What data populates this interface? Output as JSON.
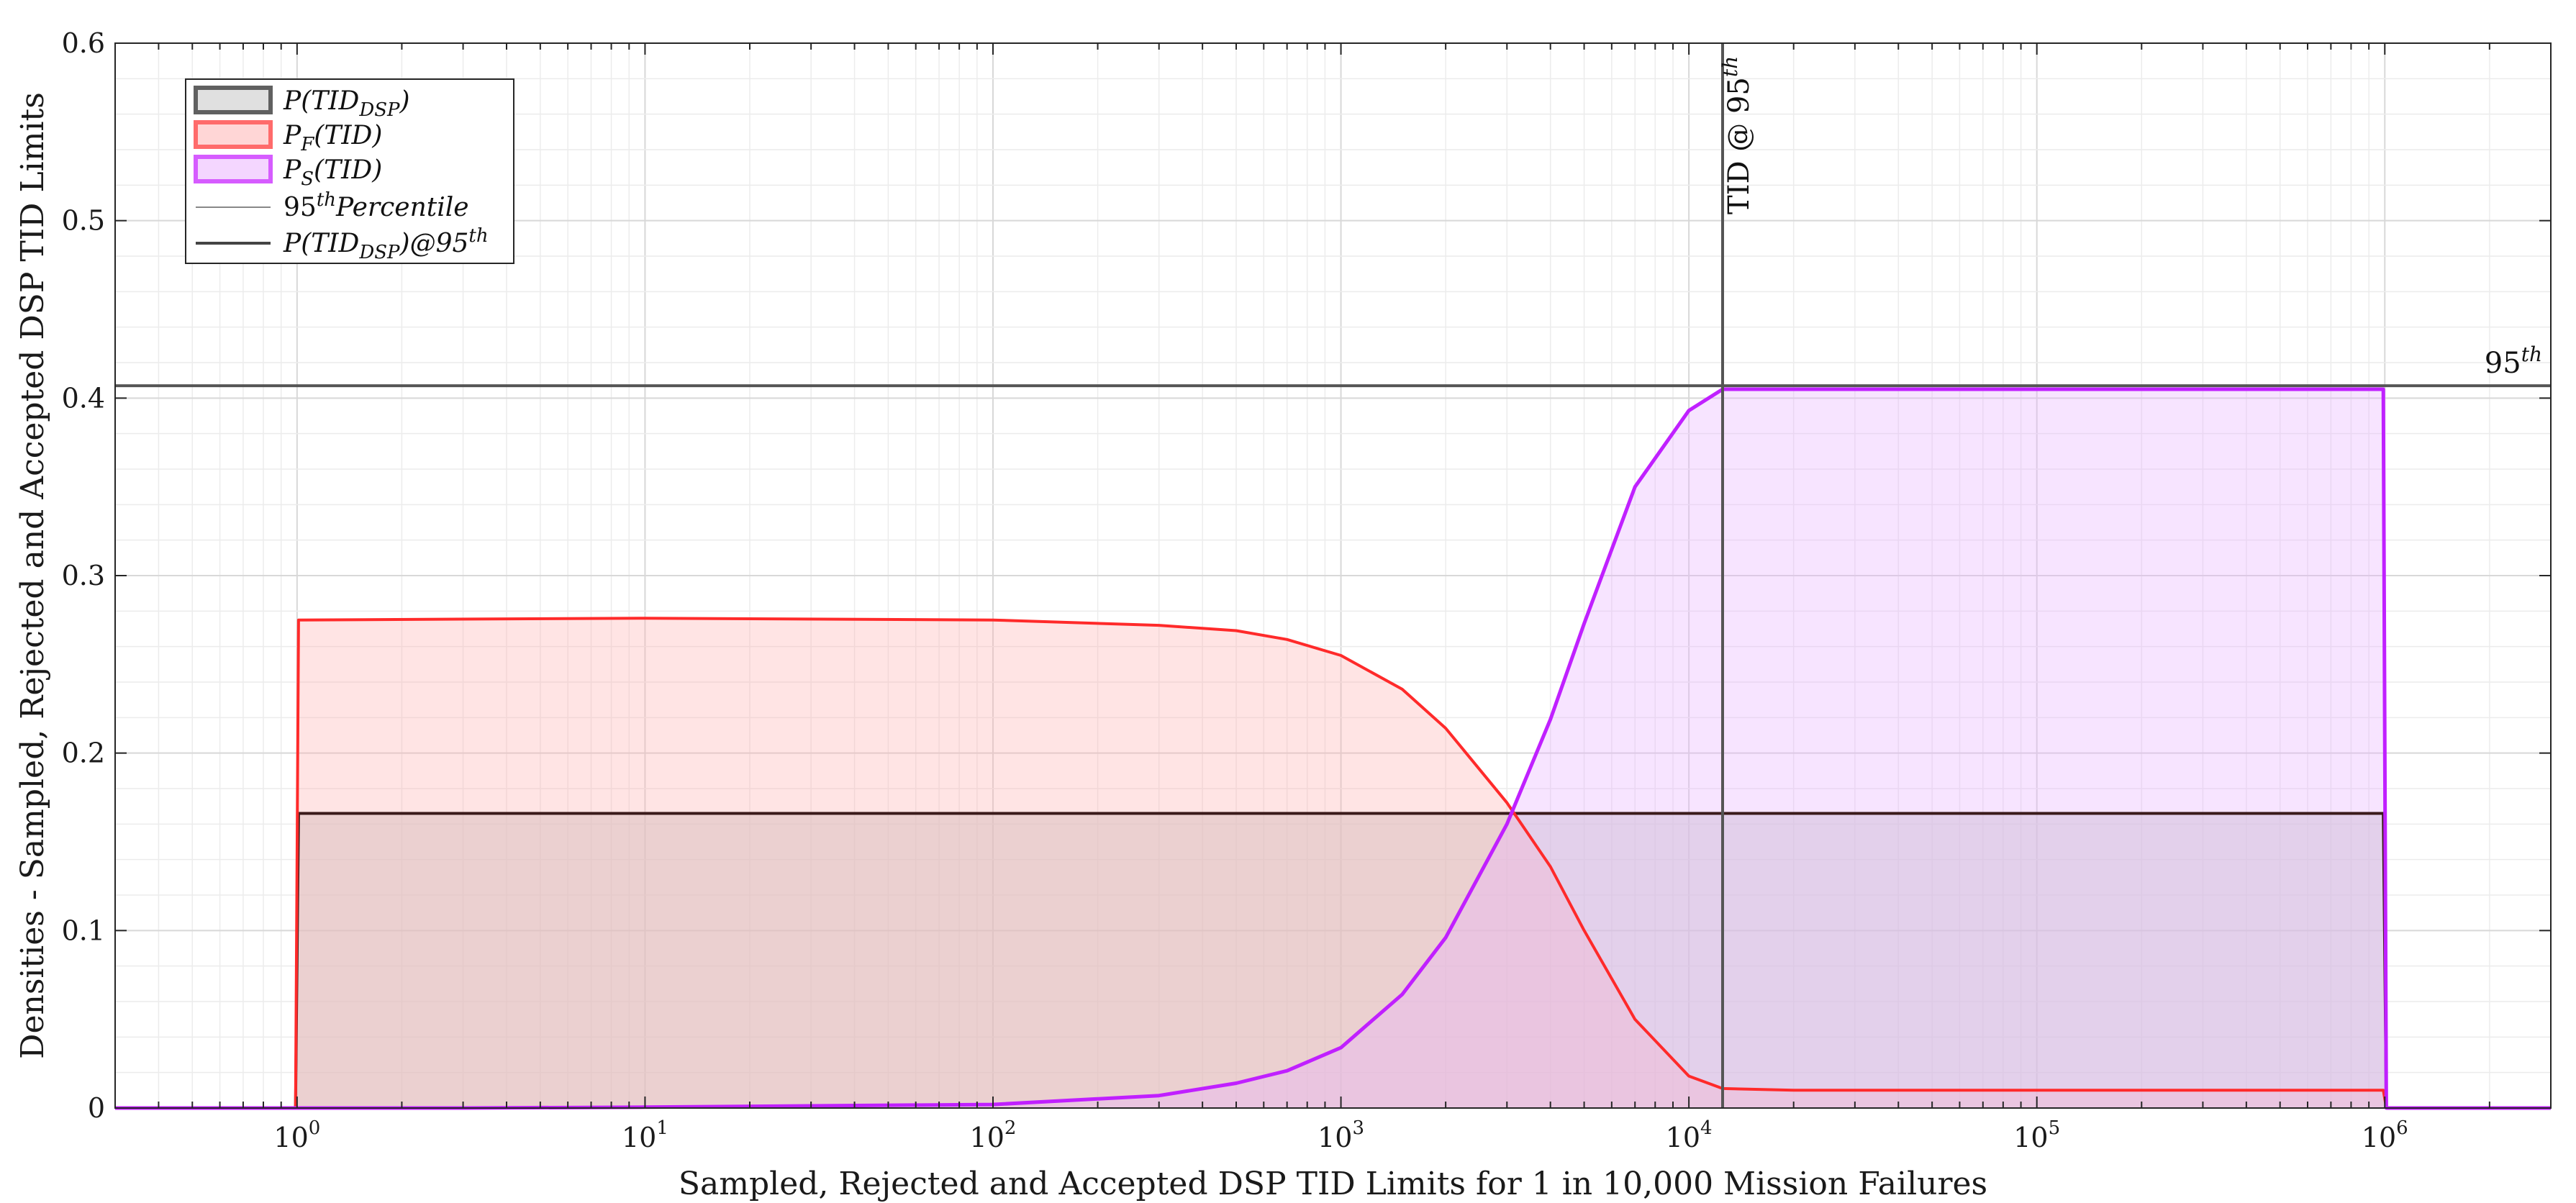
{
  "chart_data": {
    "type": "area",
    "xscale": "log",
    "xlim": [
      0.3,
      3000000
    ],
    "ylim": [
      0,
      0.6
    ],
    "grid": true,
    "legend_position": "top-left",
    "xlabel": "Sampled, Rejected and Accepted DSP TID Limits for 1 in 10,000 Mission Failures",
    "ylabel": "Densities - Sampled, Rejected and Accepted DSP TID Limits",
    "y_ticks": [
      "0",
      "0.1",
      "0.2",
      "0.3",
      "0.4",
      "0.5",
      "0.6"
    ],
    "x_ticks": [
      {
        "base": "10",
        "exp": "0",
        "value": 1
      },
      {
        "base": "10",
        "exp": "1",
        "value": 10
      },
      {
        "base": "10",
        "exp": "2",
        "value": 100
      },
      {
        "base": "10",
        "exp": "3",
        "value": 1000
      },
      {
        "base": "10",
        "exp": "4",
        "value": 10000
      },
      {
        "base": "10",
        "exp": "5",
        "value": 100000
      },
      {
        "base": "10",
        "exp": "6",
        "value": 1000000
      }
    ],
    "legend": {
      "p_dsp": {
        "main": "P(TID",
        "sub": "DSP",
        "tail": ")"
      },
      "p_f": {
        "main": "P",
        "sub": "F",
        "tail": "(TID)"
      },
      "p_s": {
        "main": "P",
        "sub": "S",
        "tail": "(TID)"
      },
      "percentile": {
        "main": "95",
        "sup": "th",
        "tail": "Percentile"
      },
      "p_dsp_at95": {
        "main": "P(TID",
        "sub": "DSP",
        "mid": ")@95",
        "sup": "th"
      }
    },
    "annotations": {
      "vline_label": {
        "main": "TID @ 95",
        "sup": "th"
      },
      "hline_label": {
        "main": "95",
        "sup": "th"
      }
    },
    "reference_lines": {
      "hline_y": 0.407,
      "vline_x": 12500
    },
    "colors": {
      "dsp_line": "#3a1a1a",
      "dsp_fill": "#c8c8c8",
      "f_line": "#ff2a2a",
      "f_fill": "#ffb3b3",
      "s_line": "#c020ff",
      "s_fill": "#e9b3ff",
      "ref_line": "#555555"
    },
    "series": [
      {
        "name": "P(TID_DSP)",
        "x": [
          0.3,
          0.99,
          1.01,
          10,
          100,
          1000,
          10000,
          100000,
          990000,
          1010000,
          3000000
        ],
        "y": [
          0,
          0,
          0.166,
          0.166,
          0.166,
          0.166,
          0.166,
          0.166,
          0.166,
          0,
          0
        ]
      },
      {
        "name": "P_F(TID)",
        "x": [
          0.3,
          0.99,
          1.01,
          10,
          100,
          300,
          500,
          700,
          1000,
          1500,
          2000,
          3000,
          4000,
          5000,
          7000,
          10000,
          12500,
          20000,
          100000,
          990000,
          1010000,
          3000000
        ],
        "y": [
          0,
          0,
          0.275,
          0.276,
          0.275,
          0.272,
          0.269,
          0.264,
          0.255,
          0.236,
          0.214,
          0.172,
          0.136,
          0.1,
          0.05,
          0.018,
          0.011,
          0.01,
          0.01,
          0.01,
          0,
          0
        ]
      },
      {
        "name": "P_S(TID)",
        "x": [
          0.3,
          3,
          10,
          100,
          300,
          500,
          700,
          1000,
          1500,
          2000,
          3000,
          4000,
          5000,
          7000,
          10000,
          12500,
          20000,
          100000,
          990000,
          1010000,
          3000000
        ],
        "y": [
          0,
          0,
          0.0005,
          0.002,
          0.007,
          0.014,
          0.021,
          0.034,
          0.064,
          0.096,
          0.16,
          0.219,
          0.273,
          0.35,
          0.393,
          0.405,
          0.405,
          0.405,
          0.405,
          0,
          0
        ]
      }
    ]
  }
}
